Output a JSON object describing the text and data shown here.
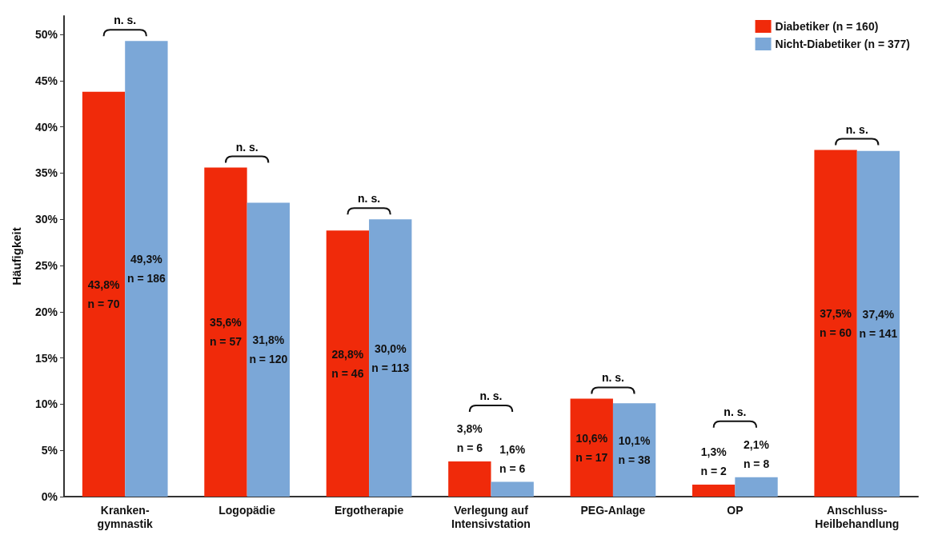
{
  "chart_data": {
    "type": "bar",
    "ylabel": "Häufigkeit",
    "categories": [
      "Kranken-\ngymnastik",
      "Logopädie",
      "Ergotherapie",
      "Verlegung auf\nIntensivstation",
      "PEG-Anlage",
      "OP",
      "Anschluss-\nHeilbehandlung"
    ],
    "series": [
      {
        "name": "Diabetiker (n = 160)",
        "color": "#f02a0a",
        "values": [
          43.8,
          35.6,
          28.8,
          3.8,
          10.6,
          1.3,
          37.5
        ],
        "value_labels": [
          "43,8%\nn = 70",
          "35,6%\nn = 57",
          "28,8%\nn = 46",
          "3,8%\nn = 6",
          "10,6%\nn = 17",
          "1,3%\nn = 2",
          "37,5%\nn = 60"
        ]
      },
      {
        "name": "Nicht-Diabetiker (n = 377)",
        "color": "#7ba7d7",
        "values": [
          49.3,
          31.8,
          30.0,
          1.6,
          10.1,
          2.1,
          37.4
        ],
        "value_labels": [
          "49,3%\nn = 186",
          "31,8%\nn = 120",
          "30,0%\nn = 113",
          "1,6%\nn = 6",
          "10,1%\nn = 38",
          "2,1%\nn = 8",
          "37,4%\nn = 141"
        ]
      }
    ],
    "ylim": [
      0,
      52
    ],
    "yticks": [
      {
        "value": 0,
        "label": "0%"
      },
      {
        "value": 5,
        "label": "5%"
      },
      {
        "value": 10,
        "label": "10%"
      },
      {
        "value": 15,
        "label": "15%"
      },
      {
        "value": 20,
        "label": "20%"
      },
      {
        "value": 25,
        "label": "25%"
      },
      {
        "value": 30,
        "label": "30%"
      },
      {
        "value": 35,
        "label": "35%"
      },
      {
        "value": 40,
        "label": "40%"
      },
      {
        "value": 45,
        "label": "45%"
      },
      {
        "value": 50,
        "label": "50%"
      }
    ],
    "annotations": [
      "n. s.",
      "n. s.",
      "n. s.",
      "n. s.",
      "n. s.",
      "n. s.",
      "n. s."
    ],
    "grid": false,
    "legend": "top right"
  }
}
